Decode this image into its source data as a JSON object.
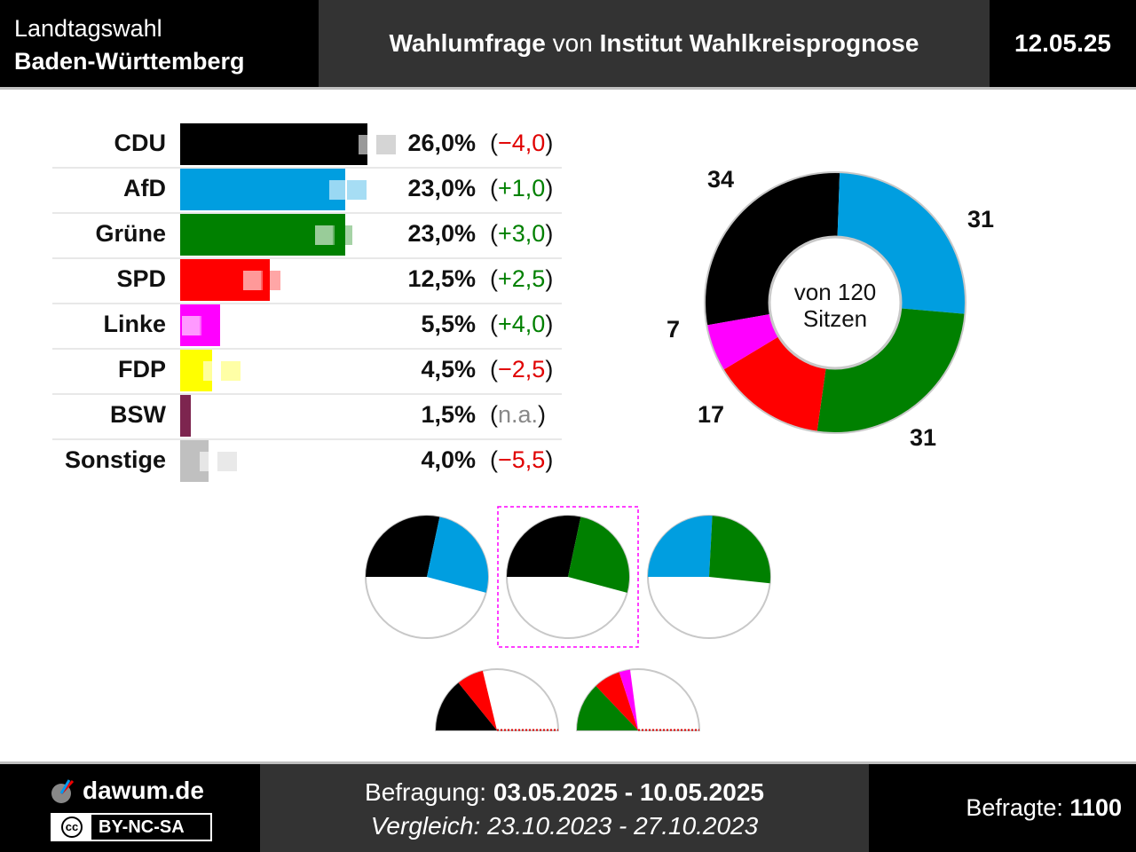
{
  "header": {
    "line1": "Landtagswahl",
    "line2": "Baden-Württemberg",
    "title_bold1": "Wahlumfrage",
    "title_mid": " von ",
    "title_bold2": "Institut Wahlkreisprognose",
    "date": "12.05.25"
  },
  "chart_data": [
    {
      "type": "bar",
      "orientation": "horizontal",
      "categories": [
        "CDU",
        "AfD",
        "Grüne",
        "SPD",
        "Linke",
        "FDP",
        "BSW",
        "Sonstige"
      ],
      "series": [
        {
          "values": [
            26.0,
            23.0,
            23.0,
            12.5,
            5.5,
            4.5,
            1.5,
            4.0
          ]
        },
        {
          "values": [
            30.0,
            22.0,
            20.0,
            10.0,
            1.5,
            7.0,
            null,
            9.5
          ]
        }
      ],
      "value_labels": [
        "26,0%",
        "23,0%",
        "23,0%",
        "12,5%",
        "5,5%",
        "4,5%",
        "1,5%",
        "4,0%"
      ],
      "change_labels": [
        "−4,0",
        "+1,0",
        "+3,0",
        "+2,5",
        "+4,0",
        "−2,5",
        "n.a.",
        "−5,5"
      ],
      "change_sign": [
        "neg",
        "pos",
        "pos",
        "pos",
        "pos",
        "neg",
        "na",
        "neg"
      ],
      "colors": [
        "#000000",
        "#009ee0",
        "#008000",
        "#ff0000",
        "#ff00ff",
        "#ffff00",
        "#7d254f",
        "#c0c0c0"
      ]
    },
    {
      "type": "pie",
      "style": "donut",
      "categories": [
        "CDU",
        "AfD",
        "Grüne",
        "SPD",
        "Linke"
      ],
      "values": [
        34,
        31,
        31,
        17,
        7
      ],
      "colors": [
        "#000000",
        "#009ee0",
        "#008000",
        "#ff0000",
        "#ff00ff"
      ],
      "center_line1": "von 120",
      "center_line2": "Sitzen"
    }
  ],
  "coalitions": [
    {
      "parties": [
        "CDU",
        "AfD"
      ],
      "highlighted": false
    },
    {
      "parties": [
        "CDU",
        "Grüne"
      ],
      "highlighted": true
    },
    {
      "parties": [
        "AfD",
        "Grüne"
      ],
      "highlighted": false
    },
    {
      "parties": [
        "CDU",
        "SPD"
      ],
      "highlighted": false
    },
    {
      "parties": [
        "Grüne",
        "SPD",
        "Linke"
      ],
      "highlighted": false
    }
  ],
  "footer": {
    "site": "dawum.de",
    "license": "BY-NC-SA",
    "license_cc": "cc",
    "survey_label": "Befragung: ",
    "survey_range": "03.05.2025 - 10.05.2025",
    "compare_text": "Vergleich: 23.10.2023 - 27.10.2023",
    "respondents_label": "Befragte: ",
    "respondents": "1100"
  }
}
